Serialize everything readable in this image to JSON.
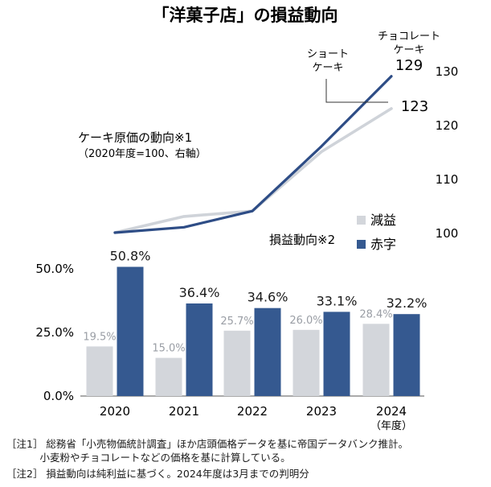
{
  "title": "「洋菓子店」の損益動向",
  "chart_data": [
    {
      "type": "line",
      "title": "ケーキ原価の動向※1",
      "subtitle": "（2020年度=100、右軸）",
      "x": [
        "2020",
        "2021",
        "2022",
        "2023",
        "2024"
      ],
      "ylim": [
        95,
        133
      ],
      "yticks": [
        "100",
        "110",
        "120",
        "130"
      ],
      "series": [
        {
          "name": "チョコレートケーキ",
          "name_lines": [
            "チョコレート",
            "ケーキ"
          ],
          "color": "#2e4d86",
          "values": [
            100,
            101,
            104,
            116,
            129
          ],
          "end_label": "129"
        },
        {
          "name": "ショートケーキ",
          "name_lines": [
            "ショート",
            "ケーキ"
          ],
          "color": "#cfd3d9",
          "values": [
            100,
            103,
            104,
            115,
            123
          ],
          "end_label": "123"
        }
      ]
    },
    {
      "type": "bar",
      "title": "損益動向※2",
      "categories": [
        "2020",
        "2021",
        "2022",
        "2023",
        "2024"
      ],
      "category_suffix": "（年度）",
      "ylim": [
        0,
        55
      ],
      "yticks": [
        "0.0%",
        "25.0%",
        "50.0%"
      ],
      "legend": {
        "position": "top-right",
        "entries": [
          "減益",
          "赤字"
        ]
      },
      "series": [
        {
          "name": "減益",
          "color": "#d3d6db",
          "label_color": "#9a9ea5",
          "values": [
            19.5,
            15.0,
            25.7,
            26.0,
            28.4
          ],
          "labels": [
            "19.5%",
            "15.0%",
            "25.7%",
            "26.0%",
            "28.4%"
          ]
        },
        {
          "name": "赤字",
          "color": "#355990",
          "label_color": "#1a1a1a",
          "values": [
            50.8,
            36.4,
            34.6,
            33.1,
            32.2
          ],
          "labels": [
            "50.8%",
            "36.4%",
            "34.6%",
            "33.1%",
            "32.2%"
          ]
        }
      ]
    }
  ],
  "notes": [
    [
      "［注1］ 総務省「小売物価統計調査」ほか店頭価格データを基に帝国データバンク推計。",
      "　　　 小麦粉やチョコレートなどの価格を基に計算している。"
    ],
    [
      "［注2］ 損益動向は純利益に基づく。2024年度は3月までの判明分"
    ]
  ]
}
